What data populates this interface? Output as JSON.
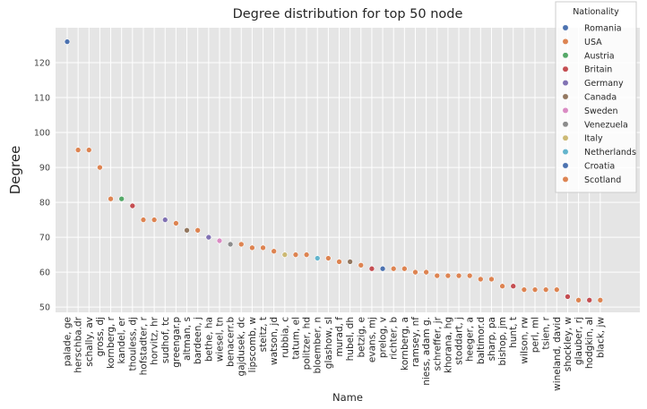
{
  "chart_data": {
    "type": "scatter",
    "title": "Degree distribution for top 50 node",
    "xlabel": "Name",
    "ylabel": "Degree",
    "ylim": [
      48.5,
      130
    ],
    "yticks": [
      50,
      60,
      70,
      80,
      90,
      100,
      110,
      120
    ],
    "grid": true,
    "legend_placement": "top-right",
    "legend_title": "Nationality",
    "legend": [
      {
        "name": "Romania",
        "color": "#4c72b0"
      },
      {
        "name": "USA",
        "color": "#dd8452"
      },
      {
        "name": "Austria",
        "color": "#55a868"
      },
      {
        "name": "Britain",
        "color": "#c44e52"
      },
      {
        "name": "Germany",
        "color": "#8172b3"
      },
      {
        "name": "Canada",
        "color": "#937860"
      },
      {
        "name": "Sweden",
        "color": "#da8bc3"
      },
      {
        "name": "Venezuela",
        "color": "#8c8c8c"
      },
      {
        "name": "Italy",
        "color": "#ccb974"
      },
      {
        "name": "Netherlands",
        "color": "#64b5cd"
      },
      {
        "name": "Croatia",
        "color": "#4c72b0"
      },
      {
        "name": "Scotland",
        "color": "#dd8452"
      }
    ],
    "points": [
      {
        "x": "palade, ge",
        "y": 126,
        "nationality": "Romania"
      },
      {
        "x": "herschba.dr",
        "y": 95,
        "nationality": "USA"
      },
      {
        "x": "schally, av",
        "y": 95,
        "nationality": "USA"
      },
      {
        "x": "gross, dj",
        "y": 90,
        "nationality": "USA"
      },
      {
        "x": "kornberg, r",
        "y": 81,
        "nationality": "USA"
      },
      {
        "x": "kandel, er",
        "y": 81,
        "nationality": "Austria"
      },
      {
        "x": "thouless, dj",
        "y": 79,
        "nationality": "Britain"
      },
      {
        "x": "hofstadter, r",
        "y": 75,
        "nationality": "USA"
      },
      {
        "x": "horvitz, hr",
        "y": 75,
        "nationality": "USA"
      },
      {
        "x": "sudhof, tc",
        "y": 75,
        "nationality": "Germany"
      },
      {
        "x": "greengar.p",
        "y": 74,
        "nationality": "USA"
      },
      {
        "x": "altman, s",
        "y": 72,
        "nationality": "Canada"
      },
      {
        "x": "bardeen, j",
        "y": 72,
        "nationality": "USA"
      },
      {
        "x": "bethe, ha",
        "y": 70,
        "nationality": "Germany"
      },
      {
        "x": "wiesel, tn",
        "y": 69,
        "nationality": "Sweden"
      },
      {
        "x": "benacerr.b",
        "y": 68,
        "nationality": "Venezuela"
      },
      {
        "x": "gajdusek, dc",
        "y": 68,
        "nationality": "USA"
      },
      {
        "x": "lipscomb, w",
        "y": 67,
        "nationality": "USA"
      },
      {
        "x": "steitz, t",
        "y": 67,
        "nationality": "USA"
      },
      {
        "x": "watson, jd",
        "y": 66,
        "nationality": "USA"
      },
      {
        "x": "rubbia, c",
        "y": 65,
        "nationality": "Italy"
      },
      {
        "x": "tatum, el",
        "y": 65,
        "nationality": "USA"
      },
      {
        "x": "politzer, hd",
        "y": 65,
        "nationality": "USA"
      },
      {
        "x": "bloember, n",
        "y": 64,
        "nationality": "Netherlands"
      },
      {
        "x": "glashow, sl",
        "y": 64,
        "nationality": "USA"
      },
      {
        "x": "murad, f",
        "y": 63,
        "nationality": "USA"
      },
      {
        "x": "hubel, dh",
        "y": 63,
        "nationality": "Canada"
      },
      {
        "x": "betzig, e",
        "y": 62,
        "nationality": "USA"
      },
      {
        "x": "evans, mj",
        "y": 61,
        "nationality": "Britain"
      },
      {
        "x": "prelog, v",
        "y": 61,
        "nationality": "Croatia"
      },
      {
        "x": "richter, b",
        "y": 61,
        "nationality": "USA"
      },
      {
        "x": "kornberg, a",
        "y": 61,
        "nationality": "USA"
      },
      {
        "x": "ramsey, nf",
        "y": 60,
        "nationality": "USA"
      },
      {
        "x": "niess, adam g.",
        "y": 60,
        "nationality": "USA"
      },
      {
        "x": "schreffer, jr",
        "y": 59,
        "nationality": "USA"
      },
      {
        "x": "khorana, hg",
        "y": 59,
        "nationality": "USA"
      },
      {
        "x": "stoddart, j",
        "y": 59,
        "nationality": "Scotland"
      },
      {
        "x": "heeger, a",
        "y": 59,
        "nationality": "USA"
      },
      {
        "x": "baltimor.d",
        "y": 58,
        "nationality": "USA"
      },
      {
        "x": "sharp, pa",
        "y": 58,
        "nationality": "USA"
      },
      {
        "x": "bishop, jm",
        "y": 56,
        "nationality": "USA"
      },
      {
        "x": "hunt, t",
        "y": 56,
        "nationality": "Britain"
      },
      {
        "x": "wilson, rw",
        "y": 55,
        "nationality": "USA"
      },
      {
        "x": "perl, ml",
        "y": 55,
        "nationality": "USA"
      },
      {
        "x": "tsien, r",
        "y": 55,
        "nationality": "USA"
      },
      {
        "x": "wineland, david",
        "y": 55,
        "nationality": "USA"
      },
      {
        "x": "shockley, w",
        "y": 53,
        "nationality": "Britain"
      },
      {
        "x": "glauber, rj",
        "y": 52,
        "nationality": "USA"
      },
      {
        "x": "hodgkin, al",
        "y": 52,
        "nationality": "Britain"
      },
      {
        "x": "black, jw",
        "y": 52,
        "nationality": "USA"
      }
    ]
  }
}
